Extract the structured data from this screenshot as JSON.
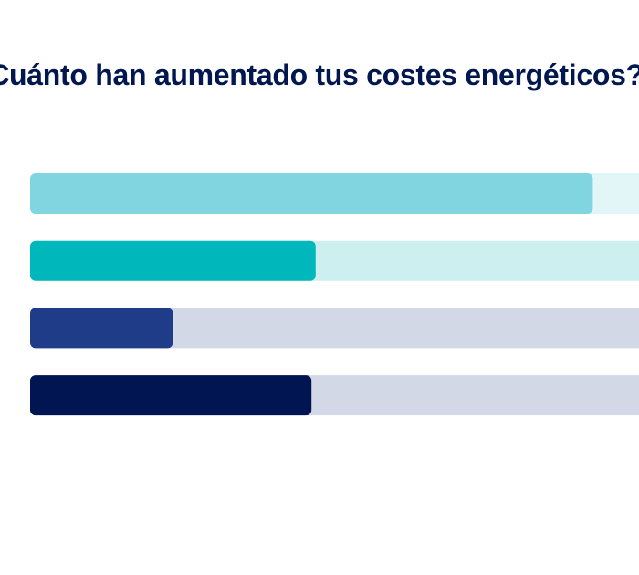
{
  "title": "¿Cuánto han aumentado tus costes energéticos?",
  "chart_data": {
    "type": "bar",
    "orientation": "horizontal",
    "title": "¿Cuánto han aumentado tus costes energéticos?",
    "categories": [
      "",
      "",
      "",
      ""
    ],
    "series": [
      {
        "values": [
          67,
          34,
          17,
          33.5
        ]
      }
    ],
    "xlim": [
      0,
      100
    ],
    "grid": false,
    "colors": {
      "fill": [
        "#80d5e0",
        "#00b7bb",
        "#1f3c88",
        "#001551"
      ],
      "track": [
        "#e2f5f7",
        "#cdeff0",
        "#d3d8e6",
        "#d3d8e6"
      ]
    }
  }
}
